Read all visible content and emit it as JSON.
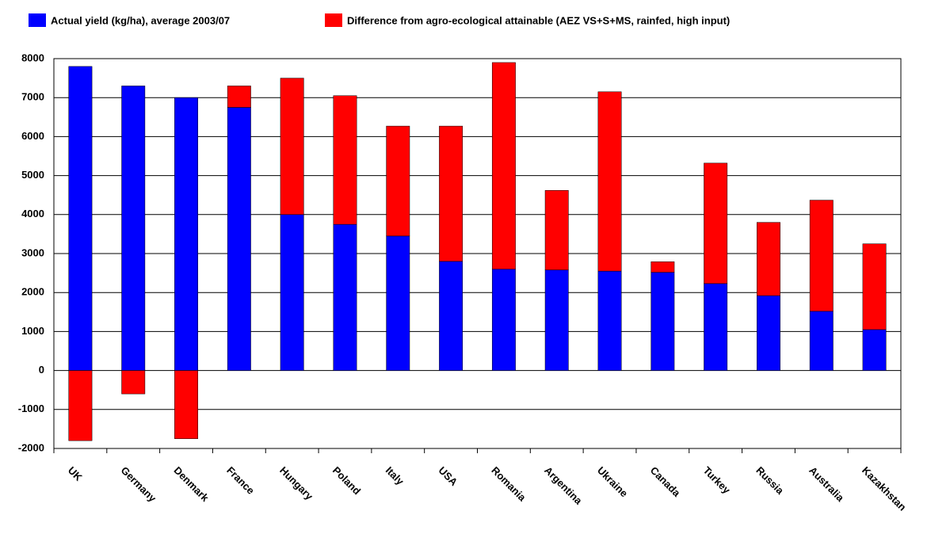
{
  "chart_data": {
    "type": "bar",
    "stacked": true,
    "categories": [
      "UK",
      "Germany",
      "Denmark",
      "France",
      "Hungary",
      "Poland",
      "Italy",
      "USA",
      "Romania",
      "Argentina",
      "Ukraine",
      "Canada",
      "Turkey",
      "Russia",
      "Australia",
      "Kazakhstan"
    ],
    "series": [
      {
        "name": "Actual yield (kg/ha), average 2003/07",
        "color": "#0000ff",
        "values": [
          7800,
          7300,
          7000,
          6750,
          4000,
          3750,
          3450,
          2800,
          2600,
          2580,
          2550,
          2520,
          2230,
          1920,
          1520,
          1050
        ]
      },
      {
        "name": "Difference from agro-ecological attainable (AEZ VS+S+MS, rainfed, high input)",
        "color": "#ff0000",
        "values": [
          -1800,
          -600,
          -1750,
          550,
          3500,
          3300,
          2820,
          3470,
          5300,
          2040,
          4600,
          270,
          3090,
          1880,
          2850,
          2200
        ]
      }
    ],
    "ylim": [
      -2000,
      8000
    ],
    "yticks": [
      -2000,
      -1000,
      0,
      1000,
      2000,
      3000,
      4000,
      5000,
      6000,
      7000,
      8000
    ],
    "grid": true
  }
}
